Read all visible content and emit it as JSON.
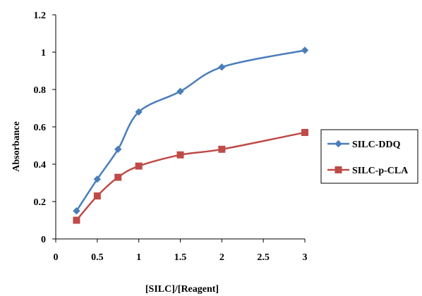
{
  "chart_data": {
    "type": "line",
    "xlabel": "[SILC]/[Reagent]",
    "ylabel": "Absorbance",
    "xlim": [
      0,
      3
    ],
    "ylim": [
      0,
      1.2
    ],
    "x_ticks": [
      "0",
      "0.5",
      "1",
      "1.5",
      "2",
      "2.5",
      "3"
    ],
    "y_ticks": [
      "0",
      "0.2",
      "0.4",
      "0.6",
      "0.8",
      "1",
      "1.2"
    ],
    "grid": false,
    "legend_position": "right",
    "series": [
      {
        "name": "SILC-DDQ",
        "color": "#4a7ebb",
        "marker": "diamond",
        "x": [
          0.25,
          0.5,
          0.75,
          1,
          1.5,
          2,
          3
        ],
        "y": [
          0.15,
          0.32,
          0.48,
          0.68,
          0.79,
          0.92,
          1.01
        ]
      },
      {
        "name": "SILC-p-CLA",
        "color": "#be4b48",
        "marker": "square",
        "x": [
          0.25,
          0.5,
          0.75,
          1,
          1.5,
          2,
          3
        ],
        "y": [
          0.1,
          0.23,
          0.33,
          0.39,
          0.45,
          0.48,
          0.57
        ]
      }
    ]
  }
}
